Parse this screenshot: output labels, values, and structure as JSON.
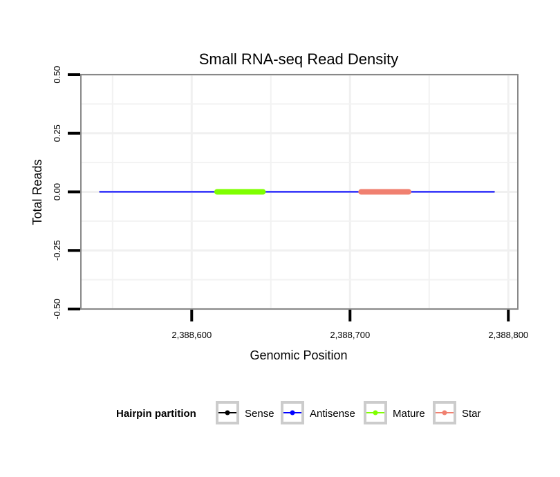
{
  "chart_data": {
    "type": "line",
    "title": "Small RNA-seq Read Density",
    "xlabel": "Genomic Position",
    "ylabel": "Total Reads",
    "xlim": [
      2388530,
      2388806
    ],
    "ylim": [
      -0.5,
      0.5
    ],
    "x_ticks": [
      2388600,
      2388700,
      2388800
    ],
    "x_tick_labels": [
      "2,388,600",
      "2,388,700",
      "2,388,800"
    ],
    "y_ticks": [
      0.5,
      0.25,
      0.0,
      -0.25,
      -0.5
    ],
    "y_tick_labels": [
      "0.50",
      "0.25",
      "0.00",
      "-0.25",
      "-0.50"
    ],
    "grid": true,
    "series": [
      {
        "name": "Sense",
        "color": "#000000",
        "x": [
          2388542,
          2388791
        ],
        "y": [
          0,
          0
        ]
      },
      {
        "name": "Antisense",
        "color": "#0000ff",
        "x": [
          2388542,
          2388791
        ],
        "y": [
          0,
          0
        ]
      },
      {
        "name": "Mature",
        "color": "#7fff00",
        "x": [
          2388616,
          2388645
        ],
        "y": [
          0,
          0
        ]
      },
      {
        "name": "Star",
        "color": "#f08070",
        "x": [
          2388707,
          2388737
        ],
        "y": [
          0,
          0
        ]
      }
    ],
    "legend": {
      "title": "Hairpin partition",
      "position": "bottom",
      "items": [
        "Sense",
        "Antisense",
        "Mature",
        "Star"
      ]
    }
  }
}
